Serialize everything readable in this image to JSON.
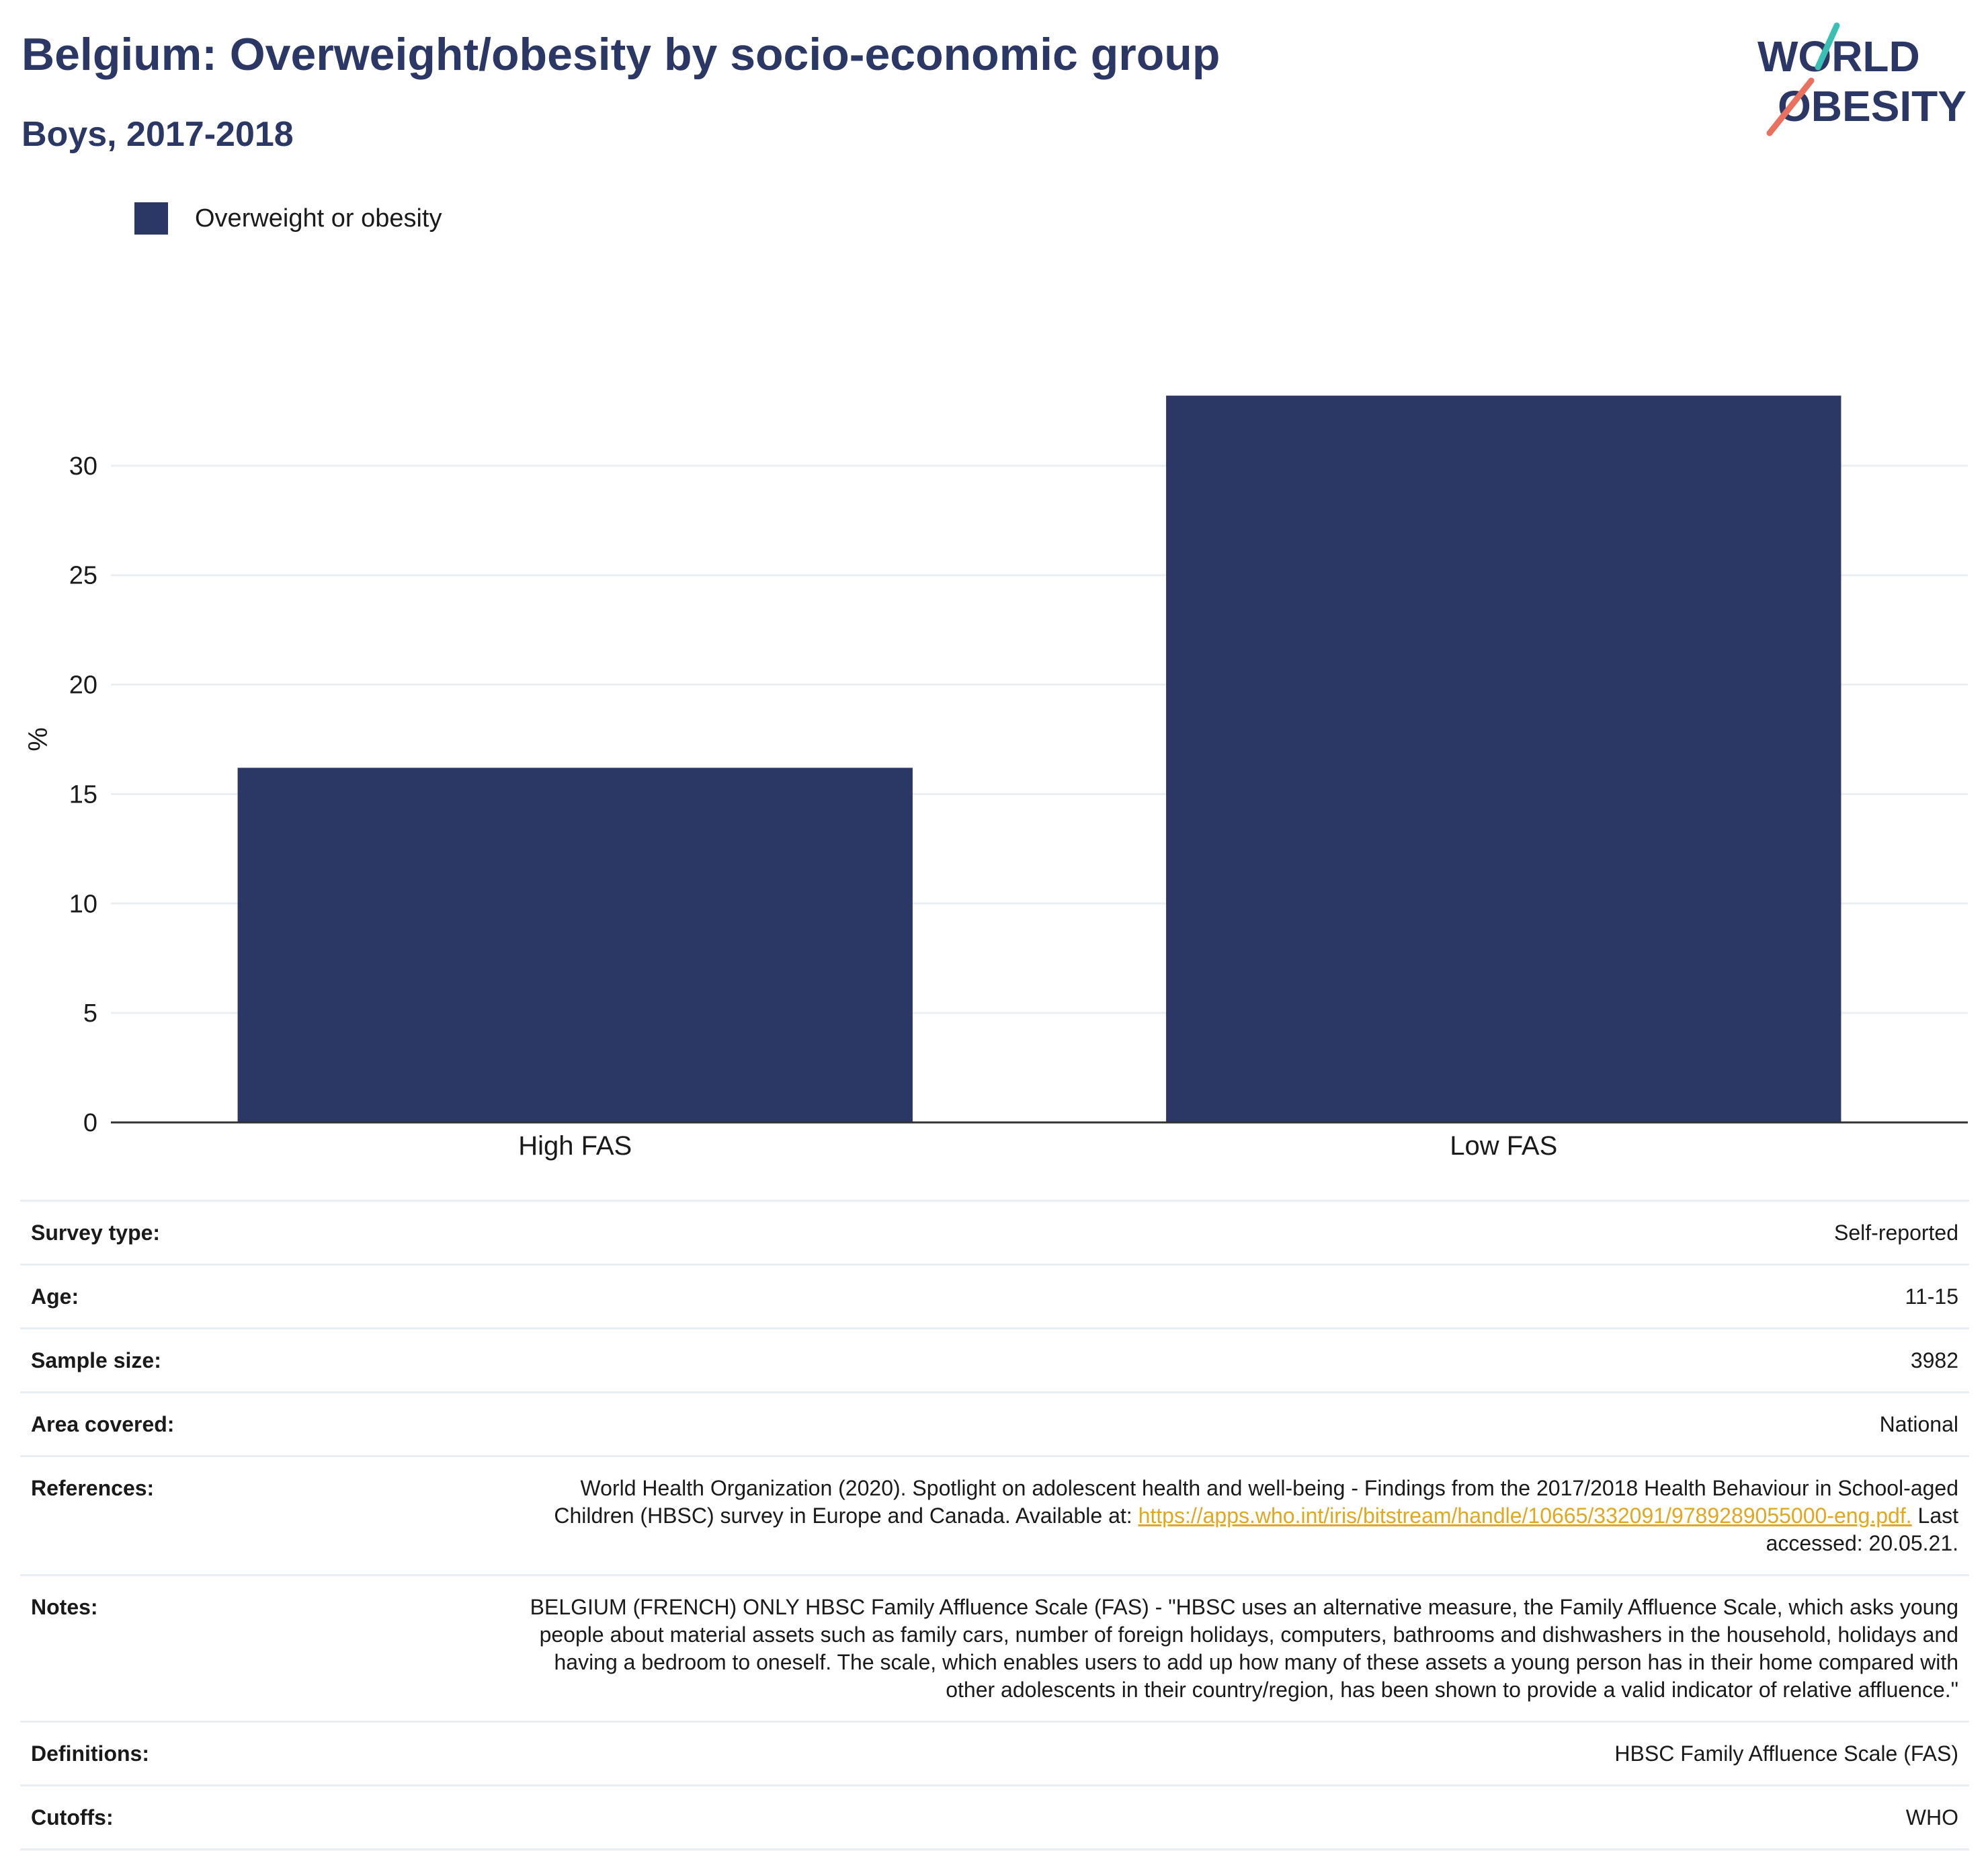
{
  "header": {
    "title": "Belgium: Overweight/obesity by socio-economic group",
    "subtitle": "Boys, 2017-2018",
    "logo_line1": "WORLD",
    "logo_line2": "OBESITY"
  },
  "legend": {
    "label": "Overweight or obesity",
    "color": "#2b3764"
  },
  "chart_data": {
    "type": "bar",
    "title": "Belgium: Overweight/obesity by socio-economic group",
    "subtitle": "Boys, 2017-2018",
    "categories": [
      "High FAS",
      "Low FAS"
    ],
    "series": [
      {
        "name": "Overweight or obesity",
        "values": [
          16.2,
          33.2
        ],
        "color": "#2b3764"
      }
    ],
    "xlabel": "",
    "ylabel": "%",
    "ylim": [
      0,
      35
    ],
    "yticks": [
      0,
      5,
      10,
      15,
      20,
      25,
      30
    ],
    "grid": true,
    "legend_position": "top-left"
  },
  "meta": {
    "rows": [
      {
        "key": "Survey type:",
        "value": "Self-reported"
      },
      {
        "key": "Age:",
        "value": "11-15"
      },
      {
        "key": "Sample size:",
        "value": "3982"
      },
      {
        "key": "Area covered:",
        "value": "National"
      },
      {
        "key": "References:",
        "value": "World Health Organization (2020). Spotlight on adolescent health and well-being - Findings from the 2017/2018 Health Behaviour in School-aged Children (HBSC) survey in Europe and Canada. Available at:",
        "link": "https://apps.who.int/iris/bitstream/handle/10665/332091/9789289055000-eng.pdf.",
        "suffix": "Last accessed: 20.05.21."
      },
      {
        "key": "Notes:",
        "value": "BELGIUM (FRENCH) ONLY HBSC Family Affluence Scale (FAS) - \"HBSC uses an alternative measure, the Family Affluence Scale, which asks young people about material assets such as family cars, number of foreign holidays, computers, bathrooms and dishwashers in the household, holidays and having a bedroom to oneself. The scale, which enables users to add up how many of these assets a young person has in their home compared with other adolescents in their country/region, has been shown to provide a valid indicator of relative affluence.\""
      },
      {
        "key": "Definitions:",
        "value": "HBSC Family Affluence Scale (FAS)"
      },
      {
        "key": "Cutoffs:",
        "value": "WHO"
      }
    ]
  }
}
